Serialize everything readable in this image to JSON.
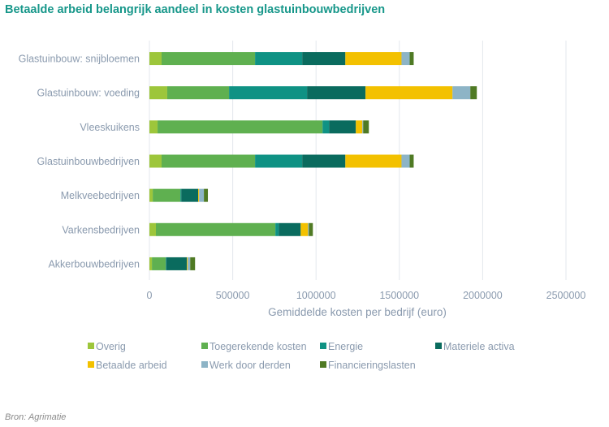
{
  "title": "Betaalde arbeid belangrijk aandeel in kosten glastuinbouwbedrijven",
  "source": "Bron: Agrimatie",
  "chart_data": {
    "type": "bar",
    "orientation": "horizontal",
    "stacked": true,
    "title": "Betaalde arbeid belangrijk aandeel in kosten glastuinbouwbedrijven",
    "xlabel": "Gemiddelde kosten per bedrijf (euro)",
    "ylabel": "",
    "xlim": [
      0,
      2500000
    ],
    "xticks": [
      "0",
      "500000",
      "1000000",
      "1500000",
      "2000000",
      "2500000"
    ],
    "xtick_values": [
      0,
      500000,
      1000000,
      1500000,
      2000000,
      2500000
    ],
    "grid": true,
    "legend_position": "bottom",
    "categories": [
      "Glastuinbouw: snijbloemen",
      "Glastuinbouw: voeding",
      "Vleeskuikens",
      "Glastuinbouwbedrijven",
      "Melkveebedrijven",
      "Varkensbedrijven",
      "Akkerbouwbedrijven"
    ],
    "series": [
      {
        "name": "Overig",
        "color": "#9dc63b",
        "values": [
          73000,
          107000,
          49000,
          73000,
          20000,
          39000,
          15000
        ]
      },
      {
        "name": "Toegerekende kosten",
        "color": "#5fb050",
        "values": [
          561000,
          371000,
          990000,
          561000,
          166000,
          717000,
          83000
        ]
      },
      {
        "name": "Energie",
        "color": "#0f9284",
        "values": [
          283000,
          468000,
          39000,
          283000,
          5000,
          20000,
          3000
        ]
      },
      {
        "name": "Materiele activa",
        "color": "#0a6b5e",
        "values": [
          259000,
          351000,
          161000,
          259000,
          102000,
          132000,
          124000
        ]
      },
      {
        "name": "Betaalde arbeid",
        "color": "#f3c100",
        "values": [
          337000,
          522000,
          39000,
          337000,
          5000,
          44000,
          5000
        ]
      },
      {
        "name": "Werk door derden",
        "color": "#8db4c6",
        "values": [
          49000,
          107000,
          5000,
          49000,
          29000,
          5000,
          15000
        ]
      },
      {
        "name": "Financieringslasten",
        "color": "#4f7a24",
        "values": [
          24000,
          39000,
          34000,
          24000,
          24000,
          24000,
          29000
        ]
      }
    ]
  }
}
